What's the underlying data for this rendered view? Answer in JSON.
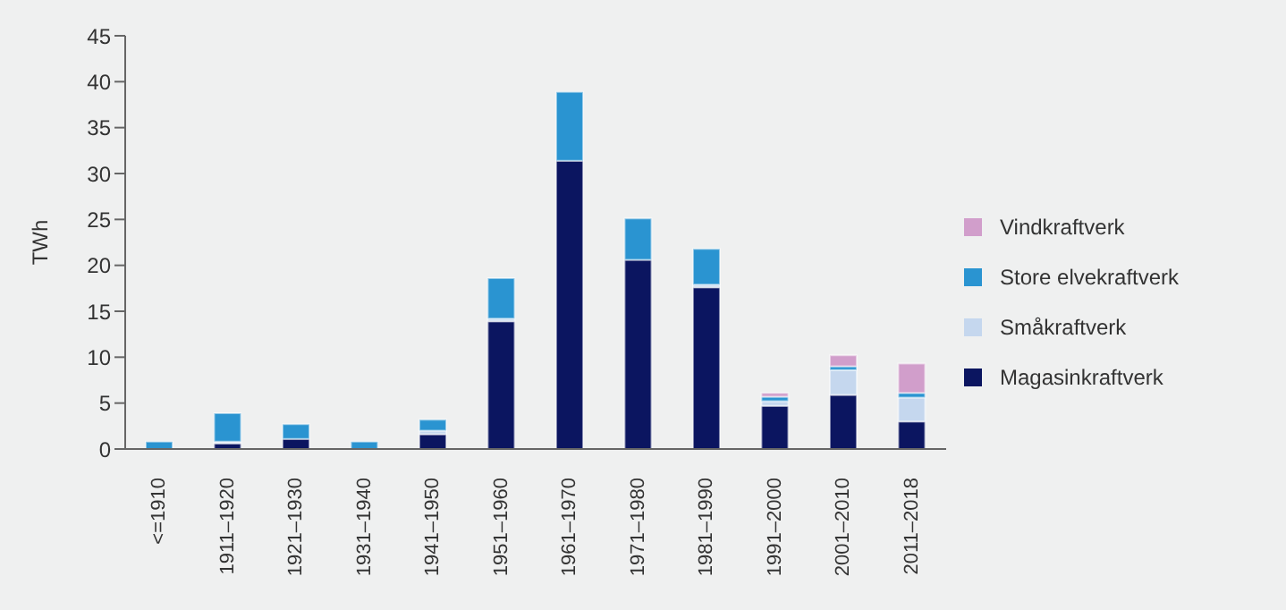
{
  "chart_data": {
    "type": "bar",
    "stacked": true,
    "ylabel": "TWh",
    "categories": [
      "<=1910",
      "1911–1920",
      "1921–1930",
      "1931–1940",
      "1941–1950",
      "1951–1960",
      "1961–1970",
      "1971–1980",
      "1981–1990",
      "1991–2000",
      "2001–2010",
      "2011–2018"
    ],
    "series": [
      {
        "name": "Magasinkraftverk",
        "color": "#0b1560",
        "values": [
          0,
          0.6,
          1.1,
          null,
          1.6,
          13.9,
          31.4,
          20.6,
          17.6,
          4.7,
          5.9,
          3.0
        ]
      },
      {
        "name": "Småkraftverk",
        "color": "#c5d7ee",
        "values": [
          null,
          0.2,
          0,
          null,
          0.4,
          0.3,
          0,
          0,
          0.3,
          0.5,
          2.7,
          2.6
        ]
      },
      {
        "name": "Store elvekraftverk",
        "color": "#2a94d1",
        "values": [
          0.8,
          3.1,
          1.6,
          0.8,
          1.2,
          4.4,
          7.5,
          4.5,
          3.9,
          0.5,
          0.4,
          0.5
        ]
      },
      {
        "name": "Vindkraftverk",
        "color": "#d19ecb",
        "values": [
          0,
          0,
          0,
          0,
          0,
          0,
          0,
          0,
          0,
          0.4,
          1.2,
          3.2
        ]
      }
    ],
    "ylim": [
      0,
      45
    ],
    "yticks": [
      0,
      5,
      10,
      15,
      20,
      25,
      30,
      35,
      40,
      45
    ],
    "grid": false,
    "legend": "right"
  }
}
